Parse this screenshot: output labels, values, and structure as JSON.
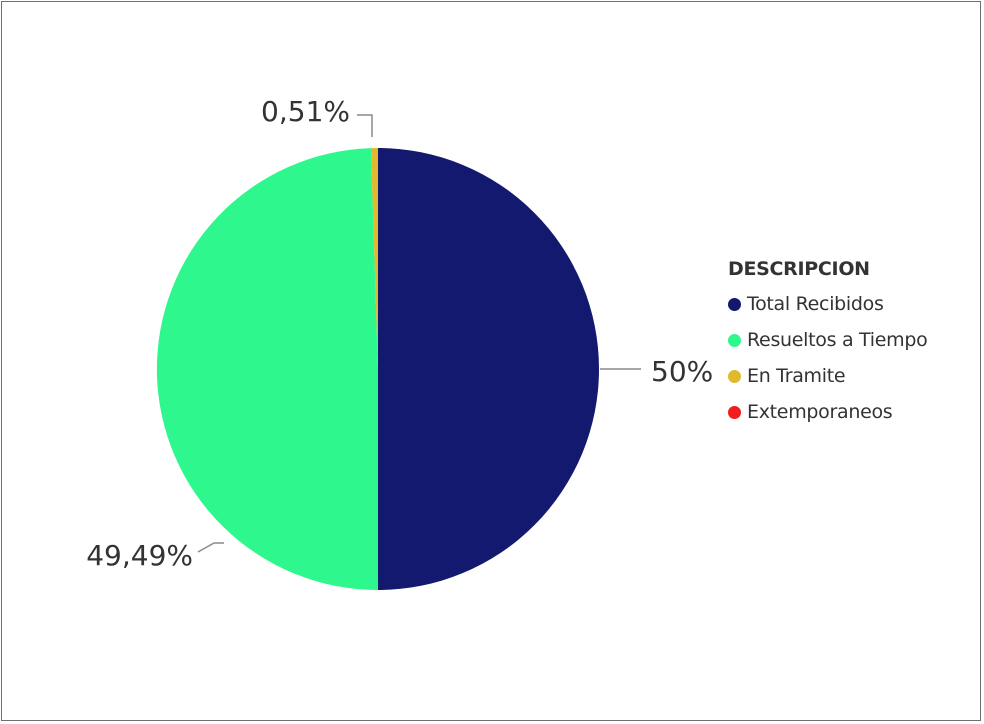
{
  "chart_data": {
    "type": "pie",
    "legend_title": "DESCRIPCION",
    "legend_position": "right",
    "categories": [
      "Total Recibidos",
      "Resueltos a Tiempo",
      "En Tramite",
      "Extemporaneos"
    ],
    "values": [
      50,
      49.49,
      0.51,
      0
    ],
    "value_labels": [
      "50%",
      "49,49%",
      "0,51%",
      ""
    ],
    "colors": [
      "#12196E",
      "#2EF88D",
      "#E0B92E",
      "#F21D1D"
    ]
  }
}
